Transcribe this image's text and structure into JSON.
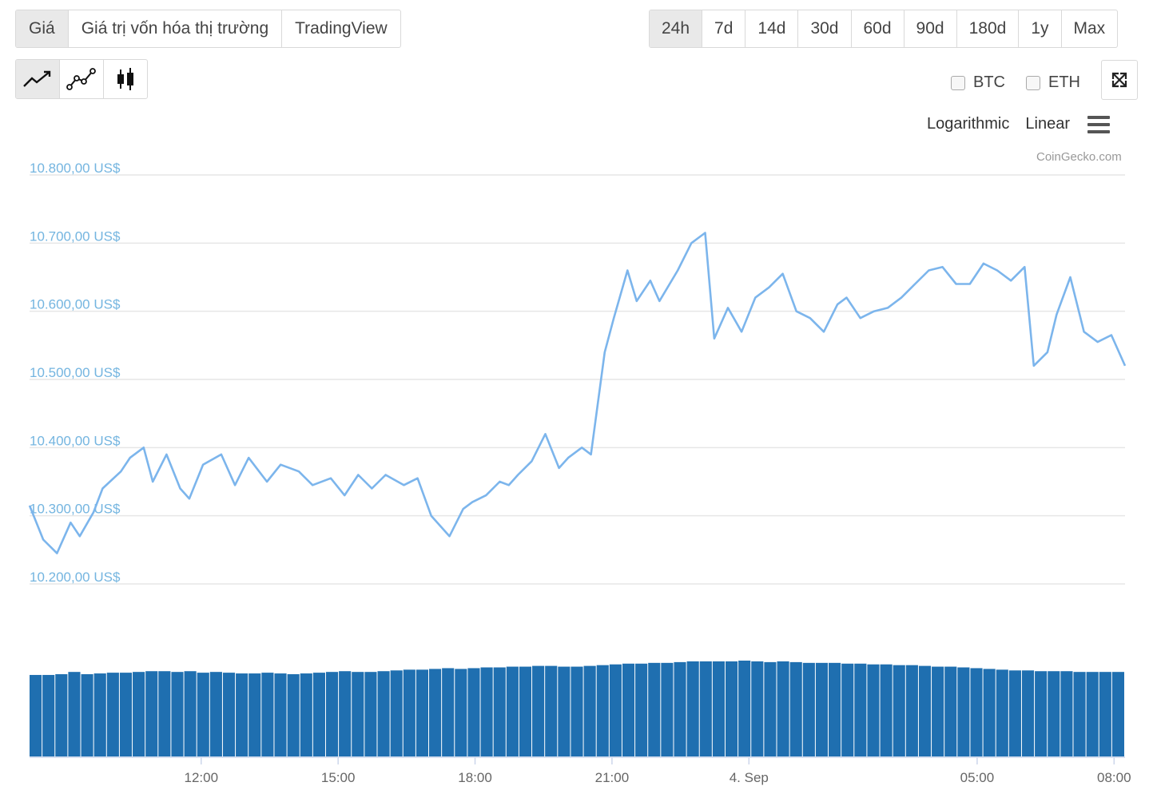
{
  "tabs": [
    {
      "label": "Giá",
      "active": true
    },
    {
      "label": "Giá trị vốn hóa thị trường",
      "active": false
    },
    {
      "label": "TradingView",
      "active": false
    }
  ],
  "ranges": [
    {
      "label": "24h",
      "active": true
    },
    {
      "label": "7d",
      "active": false
    },
    {
      "label": "14d",
      "active": false
    },
    {
      "label": "30d",
      "active": false
    },
    {
      "label": "60d",
      "active": false
    },
    {
      "label": "90d",
      "active": false
    },
    {
      "label": "180d",
      "active": false
    },
    {
      "label": "1y",
      "active": false
    },
    {
      "label": "Max",
      "active": false
    }
  ],
  "chart_types": [
    {
      "icon": "line-chart-icon",
      "active": true
    },
    {
      "icon": "line-points-chart-icon",
      "active": false
    },
    {
      "icon": "candlestick-chart-icon",
      "active": false
    }
  ],
  "compare": [
    {
      "label": "BTC",
      "checked": false
    },
    {
      "label": "ETH",
      "checked": false
    }
  ],
  "fullscreen_icon": "expand-icon",
  "scale": {
    "log_label": "Logarithmic",
    "linear_label": "Linear",
    "menu_icon": "hamburger-menu-icon"
  },
  "credits": "CoinGecko.com",
  "colors": {
    "line": "#7cb5ec",
    "volume": "#1f6fb0",
    "axis_label": "#74b5e0",
    "grid": "#e6e6e6"
  },
  "chart_data": {
    "type": "line",
    "x_unit": "hours",
    "x_range": [
      0,
      24
    ],
    "yticks": [
      10200,
      10300,
      10400,
      10500,
      10600,
      10700,
      10800
    ],
    "ytick_labels": [
      "10.200,00 US$",
      "10.300,00 US$",
      "10.400,00 US$",
      "10.500,00 US$",
      "10.600,00 US$",
      "10.700,00 US$",
      "10.800,00 US$"
    ],
    "ylim": [
      10200,
      10800
    ],
    "xticks": [
      {
        "x": 3.76,
        "label": "12:00"
      },
      {
        "x": 6.76,
        "label": "15:00"
      },
      {
        "x": 9.76,
        "label": "18:00"
      },
      {
        "x": 12.76,
        "label": "21:00"
      },
      {
        "x": 15.76,
        "label": "4. Sep"
      },
      {
        "x": 20.76,
        "label": "05:00"
      },
      {
        "x": 23.76,
        "label": "08:00"
      }
    ],
    "grid": true,
    "series": [
      {
        "type": "line",
        "x": [
          0.0,
          0.3,
          0.6,
          0.9,
          1.1,
          1.4,
          1.6,
          2.0,
          2.2,
          2.5,
          2.7,
          3.0,
          3.3,
          3.5,
          3.8,
          4.2,
          4.5,
          4.8,
          5.2,
          5.5,
          5.9,
          6.2,
          6.6,
          6.9,
          7.2,
          7.5,
          7.8,
          8.2,
          8.5,
          8.8,
          9.0,
          9.2,
          9.5,
          9.7,
          10.0,
          10.3,
          10.5,
          10.7,
          11.0,
          11.3,
          11.6,
          11.8,
          12.1,
          12.3,
          12.6,
          12.8,
          13.1,
          13.3,
          13.6,
          13.8,
          14.2,
          14.5,
          14.8,
          15.0,
          15.3,
          15.6,
          15.9,
          16.2,
          16.5,
          16.8,
          17.1,
          17.4,
          17.7,
          17.9,
          18.2,
          18.5,
          18.8,
          19.1,
          19.4,
          19.7,
          20.0,
          20.3,
          20.6,
          20.9,
          21.2,
          21.5,
          21.8,
          22.0,
          22.3,
          22.5,
          22.8,
          23.1,
          23.4,
          23.7,
          24.0
        ],
        "y": [
          10315,
          10265,
          10245,
          10290,
          10270,
          10305,
          10340,
          10365,
          10385,
          10400,
          10350,
          10390,
          10340,
          10325,
          10375,
          10390,
          10345,
          10385,
          10350,
          10375,
          10365,
          10345,
          10355,
          10330,
          10360,
          10340,
          10360,
          10345,
          10355,
          10300,
          10285,
          10270,
          10310,
          10320,
          10330,
          10350,
          10345,
          10360,
          10380,
          10420,
          10370,
          10385,
          10400,
          10390,
          10540,
          10590,
          10660,
          10615,
          10645,
          10615,
          10660,
          10700,
          10715,
          10560,
          10605,
          10570,
          10620,
          10635,
          10655,
          10600,
          10590,
          10570,
          10610,
          10620,
          10590,
          10600,
          10605,
          10620,
          10640,
          10660,
          10665,
          10640,
          10640,
          10670,
          10660,
          10645,
          10665,
          10520,
          10540,
          10595,
          10650,
          10570,
          10555,
          10565,
          10520
        ]
      },
      {
        "type": "bar",
        "role": "volume",
        "values": [
          108,
          108,
          109,
          112,
          109,
          110,
          111,
          111,
          112,
          113,
          113,
          112,
          113,
          111,
          112,
          111,
          110,
          110,
          111,
          110,
          109,
          110,
          111,
          112,
          113,
          112,
          112,
          113,
          114,
          115,
          115,
          116,
          117,
          116,
          117,
          118,
          118,
          119,
          119,
          120,
          120,
          119,
          119,
          120,
          121,
          122,
          123,
          123,
          124,
          124,
          125,
          126,
          126,
          126,
          126,
          127,
          126,
          125,
          126,
          125,
          124,
          124,
          124,
          123,
          123,
          122,
          122,
          121,
          121,
          120,
          119,
          119,
          118,
          117,
          116,
          115,
          114,
          114,
          113,
          113,
          113,
          112,
          112,
          112,
          112
        ]
      }
    ]
  }
}
